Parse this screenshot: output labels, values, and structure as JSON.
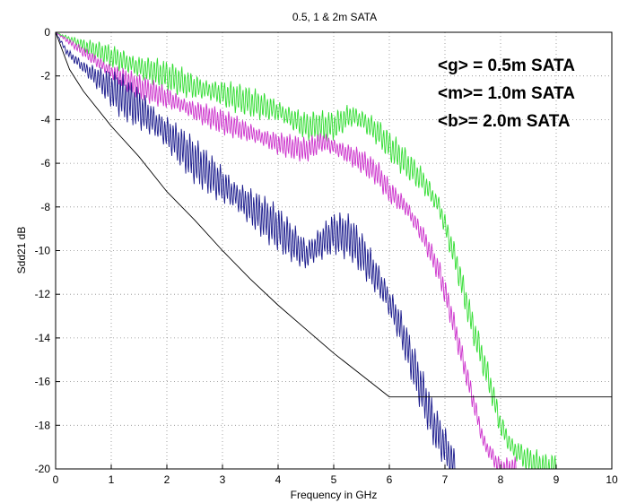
{
  "chart_data": {
    "type": "line",
    "title": "0.5, 1 & 2m SATA",
    "xlabel": "Frequency in GHz",
    "ylabel": "Sdd21 dB",
    "xlim": [
      0,
      10
    ],
    "ylim": [
      -20,
      0
    ],
    "xticks": [
      0,
      1,
      2,
      3,
      4,
      5,
      6,
      7,
      8,
      9,
      10
    ],
    "yticks": [
      0,
      -2,
      -4,
      -6,
      -8,
      -10,
      -12,
      -14,
      -16,
      -18,
      -20
    ],
    "grid": true,
    "annotations": [
      "<g> = 0.5m SATA",
      "<m>= 1.0m SATA",
      "<b>=  2.0m SATA"
    ],
    "series": [
      {
        "color": "#33dd33",
        "x": [
          0,
          0.5,
          1.0,
          1.5,
          2.0,
          2.5,
          3.0,
          3.5,
          4.0,
          4.5,
          5.0,
          5.3,
          5.5,
          5.8,
          6.0,
          6.3,
          6.6,
          6.9,
          7.2,
          7.5,
          7.8,
          8.0,
          8.2,
          8.5,
          8.8,
          9.0
        ],
        "y": [
          0,
          -0.6,
          -1.1,
          -1.6,
          -2.0,
          -2.5,
          -2.8,
          -3.2,
          -3.6,
          -4.3,
          -4.3,
          -3.8,
          -4.0,
          -4.6,
          -5.2,
          -6.0,
          -6.8,
          -8.0,
          -10.5,
          -13.5,
          -16.0,
          -18.0,
          -19.0,
          -19.6,
          -20,
          -20
        ],
        "ripple": 0.6,
        "period": 0.055
      },
      {
        "color": "#cc33cc",
        "x": [
          0,
          0.5,
          1.0,
          1.5,
          2.0,
          2.5,
          3.0,
          3.5,
          4.0,
          4.5,
          4.8,
          5.2,
          5.5,
          5.8,
          6.0,
          6.3,
          6.6,
          6.9,
          7.1,
          7.4,
          7.7,
          8.0,
          8.3
        ],
        "y": [
          0,
          -0.9,
          -1.8,
          -2.5,
          -3.0,
          -3.6,
          -4.1,
          -4.6,
          -5.1,
          -5.4,
          -5.0,
          -5.5,
          -5.9,
          -6.5,
          -7.3,
          -8.0,
          -9.3,
          -11.0,
          -12.8,
          -15.8,
          -18.8,
          -20,
          -20
        ],
        "ripple": 0.5,
        "period": 0.05
      },
      {
        "color": "#1a1a8c",
        "x": [
          0,
          0.2,
          0.5,
          1.0,
          1.5,
          2.0,
          2.5,
          3.0,
          3.5,
          4.0,
          4.5,
          5.0,
          5.3,
          5.6,
          5.9,
          6.2,
          6.5,
          6.8,
          7.0,
          7.2
        ],
        "y": [
          0,
          -0.9,
          -1.6,
          -2.6,
          -3.5,
          -4.6,
          -5.9,
          -7.0,
          -8.0,
          -9.0,
          -10.2,
          -9.2,
          -9.4,
          -10.5,
          -11.8,
          -13.5,
          -15.8,
          -18.0,
          -19.0,
          -20
        ],
        "ripple": 0.9,
        "period": 0.05
      },
      {
        "color": "#000000",
        "x": [
          0,
          0.25,
          0.5,
          1.0,
          1.5,
          2.0,
          2.5,
          3.0,
          3.5,
          4.0,
          4.5,
          5.0,
          5.5,
          6.0,
          10.0
        ],
        "y": [
          0,
          -1.7,
          -2.7,
          -4.3,
          -5.7,
          -7.3,
          -8.6,
          -10.0,
          -11.3,
          -12.5,
          -13.6,
          -14.7,
          -15.7,
          -16.7,
          -16.7
        ],
        "ripple": 0,
        "period": 0
      }
    ]
  }
}
